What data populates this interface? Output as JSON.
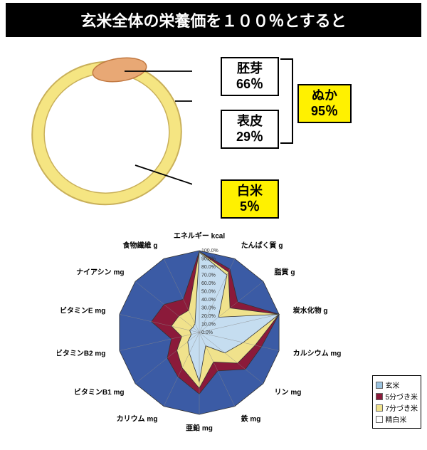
{
  "header": "玄米全体の栄養価を１００％とすると",
  "rice": {
    "outer_color": "#f5e582",
    "outer_stroke": "#c9b05a",
    "germ_color": "#e8a875",
    "germ_stroke": "#c17840",
    "labels": {
      "germ": {
        "name": "胚芽",
        "pct": "66％"
      },
      "bran": {
        "name": "ぬか",
        "pct": "95％"
      },
      "skin": {
        "name": "表皮",
        "pct": "29％"
      },
      "white": {
        "name": "白米",
        "pct": "5％"
      }
    }
  },
  "radar": {
    "axes": [
      "エネルギー kcal",
      "たんぱく質 g",
      "脂質 g",
      "炭水化物 g",
      "カルシウム mg",
      "リン mg",
      "鉄 mg",
      "亜鉛 mg",
      "カリウム mg",
      "ビタミンB1 mg",
      "ビタミンB2 mg",
      "ビタミンE mg",
      "ナイアシン mg",
      "食物繊維 g"
    ],
    "rings": [
      "100.0%",
      "90.0%",
      "80.0%",
      "70.0%",
      "60.0%",
      "50.0%",
      "40.0%",
      "30.0%",
      "20.0%",
      "10.0%",
      "0.0%"
    ],
    "series": [
      {
        "name": "玄米",
        "color": "#3b5ba5",
        "values": [
          100,
          100,
          100,
          100,
          100,
          100,
          100,
          100,
          100,
          100,
          100,
          100,
          100,
          100
        ]
      },
      {
        "name": "5分づき米",
        "color": "#8b1a3a",
        "values": [
          99,
          86,
          60,
          100,
          78,
          72,
          52,
          75,
          60,
          50,
          35,
          60,
          55,
          45
        ]
      },
      {
        "name": "7分づき米",
        "color": "#f0e28c",
        "values": [
          99,
          82,
          48,
          100,
          70,
          60,
          40,
          68,
          48,
          35,
          22,
          35,
          32,
          30
        ]
      },
      {
        "name": "精白米",
        "color": "#c5ddf0",
        "values": [
          98,
          78,
          30,
          100,
          55,
          40,
          18,
          60,
          28,
          18,
          10,
          12,
          10,
          12
        ]
      }
    ],
    "axis_font": 10,
    "bg": "#ffffff",
    "grid_stroke": "#888"
  },
  "legend": {
    "items": [
      {
        "label": "玄米",
        "color": "#9cc4e0"
      },
      {
        "label": "5分づき米",
        "color": "#8b1a3a"
      },
      {
        "label": "7分づき米",
        "color": "#f0e28c"
      },
      {
        "label": "精白米",
        "color": "#ffffff"
      }
    ]
  }
}
